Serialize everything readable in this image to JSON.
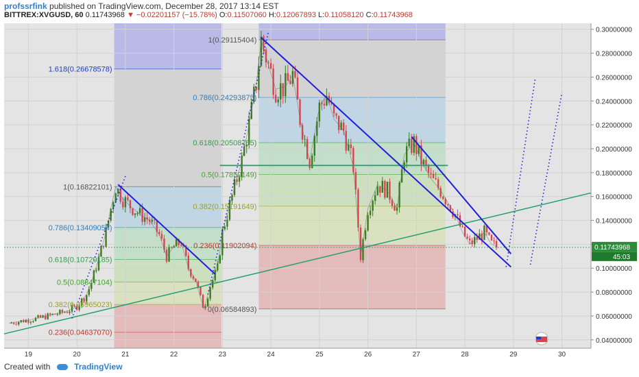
{
  "header": {
    "author": "profssrfink",
    "published": "published on TradingView.com, December 28, 2017 13:14 EST",
    "symbol": "BITTREX:XVGUSD, 60",
    "last": "0.11743968",
    "arrow": "▼",
    "change": "−0.02201157 (−15.78%)",
    "o_label": "O:",
    "o_value": "0.11507060",
    "h_label": "H:",
    "h_value": "0.12067893",
    "l_label": "L:",
    "l_value": "0.11058120",
    "c_label": "C:",
    "c_value": "0.11743968"
  },
  "footer": {
    "created_with": "Created with",
    "brand": "TradingView"
  },
  "colors": {
    "up": "#3a7d1f",
    "down": "#d94452",
    "trend": "#1f1fd6",
    "support": "#1e9e6a",
    "price": "#2e8b3c"
  },
  "chart_data": {
    "type": "candlestick",
    "x_ticks": [
      "19",
      "20",
      "21",
      "22",
      "23",
      "24",
      "25",
      "26",
      "27",
      "28",
      "29",
      "30"
    ],
    "y_ticks": [
      "0.30000000",
      "0.28000000",
      "0.26000000",
      "0.24000000",
      "0.22000000",
      "0.20000000",
      "0.18000000",
      "0.16000000",
      "0.14000000",
      "0.12000000",
      "0.10000000",
      "0.08000000",
      "0.06000000",
      "0.04000000"
    ],
    "ylim": [
      0.033,
      0.305
    ],
    "xlim": [
      18.5,
      30.6
    ],
    "last_price": "0.11743968",
    "countdown": "45:03",
    "fib_sets": [
      {
        "x_from": 20.77,
        "x_to": 22.98,
        "levels": [
          {
            "label": "1.618(0.26678578)",
            "value": 0.26678578,
            "text_color": "#1f3fbf"
          },
          {
            "label": "1(0.16822101)",
            "value": 0.16822101,
            "text_color": "#555555"
          },
          {
            "label": "0.786(0.13409054)",
            "value": 0.13409054,
            "text_color": "#2a7fbf"
          },
          {
            "label": "0.618(0.10729185)",
            "value": 0.10729185,
            "text_color": "#2e9e4a"
          },
          {
            "label": "0.5(0.08847104)",
            "value": 0.08847104,
            "text_color": "#44a12e"
          },
          {
            "label": "0.382(0.06965023)",
            "value": 0.06965023,
            "text_color": "#9aa12e"
          },
          {
            "label": "0.236(0.04637070)",
            "value": 0.0463707,
            "text_color": "#c0392b"
          }
        ]
      },
      {
        "x_from": 23.75,
        "x_to": 27.6,
        "levels": [
          {
            "label": "1(0.29115404)",
            "value": 0.29115404,
            "text_color": "#555555"
          },
          {
            "label": "0.786(0.24293875)",
            "value": 0.24293875,
            "text_color": "#2a7fbf"
          },
          {
            "label": "0.618(0.20508755)",
            "value": 0.20508755,
            "text_color": "#2e9e4a"
          },
          {
            "label": "0.5(0.17850149)",
            "value": 0.17850149,
            "text_color": "#44a12e"
          },
          {
            "label": "0.382(0.15191649)",
            "value": 0.15191649,
            "text_color": "#9aa12e"
          },
          {
            "label": "0.236(0.11902094)",
            "value": 0.11902094,
            "text_color": "#c0392b"
          },
          {
            "label": "0(0.06584893)",
            "value": 0.06584893,
            "text_color": "#555555"
          }
        ]
      }
    ],
    "price_path": [
      [
        18.6,
        0.054
      ],
      [
        18.9,
        0.056
      ],
      [
        19.2,
        0.058
      ],
      [
        19.5,
        0.061
      ],
      [
        19.8,
        0.064
      ],
      [
        20.0,
        0.068
      ],
      [
        20.2,
        0.078
      ],
      [
        20.3,
        0.088
      ],
      [
        20.45,
        0.108
      ],
      [
        20.6,
        0.13
      ],
      [
        20.7,
        0.15
      ],
      [
        20.8,
        0.168
      ],
      [
        20.95,
        0.158
      ],
      [
        21.1,
        0.152
      ],
      [
        21.3,
        0.145
      ],
      [
        21.5,
        0.14
      ],
      [
        21.7,
        0.128
      ],
      [
        21.85,
        0.11
      ],
      [
        22.0,
        0.118
      ],
      [
        22.15,
        0.122
      ],
      [
        22.3,
        0.1
      ],
      [
        22.45,
        0.09
      ],
      [
        22.55,
        0.075
      ],
      [
        22.62,
        0.066
      ],
      [
        22.75,
        0.085
      ],
      [
        22.9,
        0.1
      ],
      [
        23.0,
        0.13
      ],
      [
        23.2,
        0.16
      ],
      [
        23.4,
        0.19
      ],
      [
        23.55,
        0.22
      ],
      [
        23.7,
        0.255
      ],
      [
        23.8,
        0.291
      ],
      [
        23.95,
        0.27
      ],
      [
        24.1,
        0.25
      ],
      [
        24.3,
        0.252
      ],
      [
        24.45,
        0.262
      ],
      [
        24.6,
        0.225
      ],
      [
        24.8,
        0.19
      ],
      [
        25.0,
        0.235
      ],
      [
        25.15,
        0.245
      ],
      [
        25.3,
        0.225
      ],
      [
        25.5,
        0.215
      ],
      [
        25.7,
        0.185
      ],
      [
        25.85,
        0.11
      ],
      [
        26.0,
        0.15
      ],
      [
        26.2,
        0.17
      ],
      [
        26.4,
        0.165
      ],
      [
        26.6,
        0.15
      ],
      [
        26.75,
        0.195
      ],
      [
        26.95,
        0.205
      ],
      [
        27.1,
        0.19
      ],
      [
        27.3,
        0.175
      ],
      [
        27.5,
        0.165
      ],
      [
        27.65,
        0.155
      ],
      [
        27.8,
        0.145
      ],
      [
        27.95,
        0.13
      ],
      [
        28.1,
        0.12
      ],
      [
        28.25,
        0.125
      ],
      [
        28.4,
        0.13
      ],
      [
        28.55,
        0.12
      ],
      [
        28.7,
        0.117
      ]
    ],
    "trend_lines": [
      {
        "from": [
          20.85,
          0.17
        ],
        "to": [
          22.85,
          0.095
        ]
      },
      {
        "from": [
          23.8,
          0.293
        ],
        "to": [
          28.95,
          0.101
        ]
      },
      {
        "from": [
          26.9,
          0.21
        ],
        "to": [
          28.95,
          0.112
        ]
      }
    ],
    "support_line": {
      "from": [
        18.5,
        0.045
      ],
      "to": [
        30.6,
        0.163
      ]
    },
    "horizontal_line": {
      "from": [
        22.95,
        0.186
      ],
      "to": [
        27.65,
        0.186
      ]
    },
    "dotted_channels": [
      {
        "from": [
          19.9,
          0.058
        ],
        "to": [
          21.0,
          0.177
        ]
      },
      {
        "from": [
          22.7,
          0.078
        ],
        "to": [
          23.95,
          0.298
        ]
      },
      {
        "from": [
          28.85,
          0.101
        ],
        "to": [
          29.45,
          0.259
        ]
      },
      {
        "from": [
          29.35,
          0.103
        ],
        "to": [
          30.0,
          0.247
        ]
      }
    ]
  }
}
